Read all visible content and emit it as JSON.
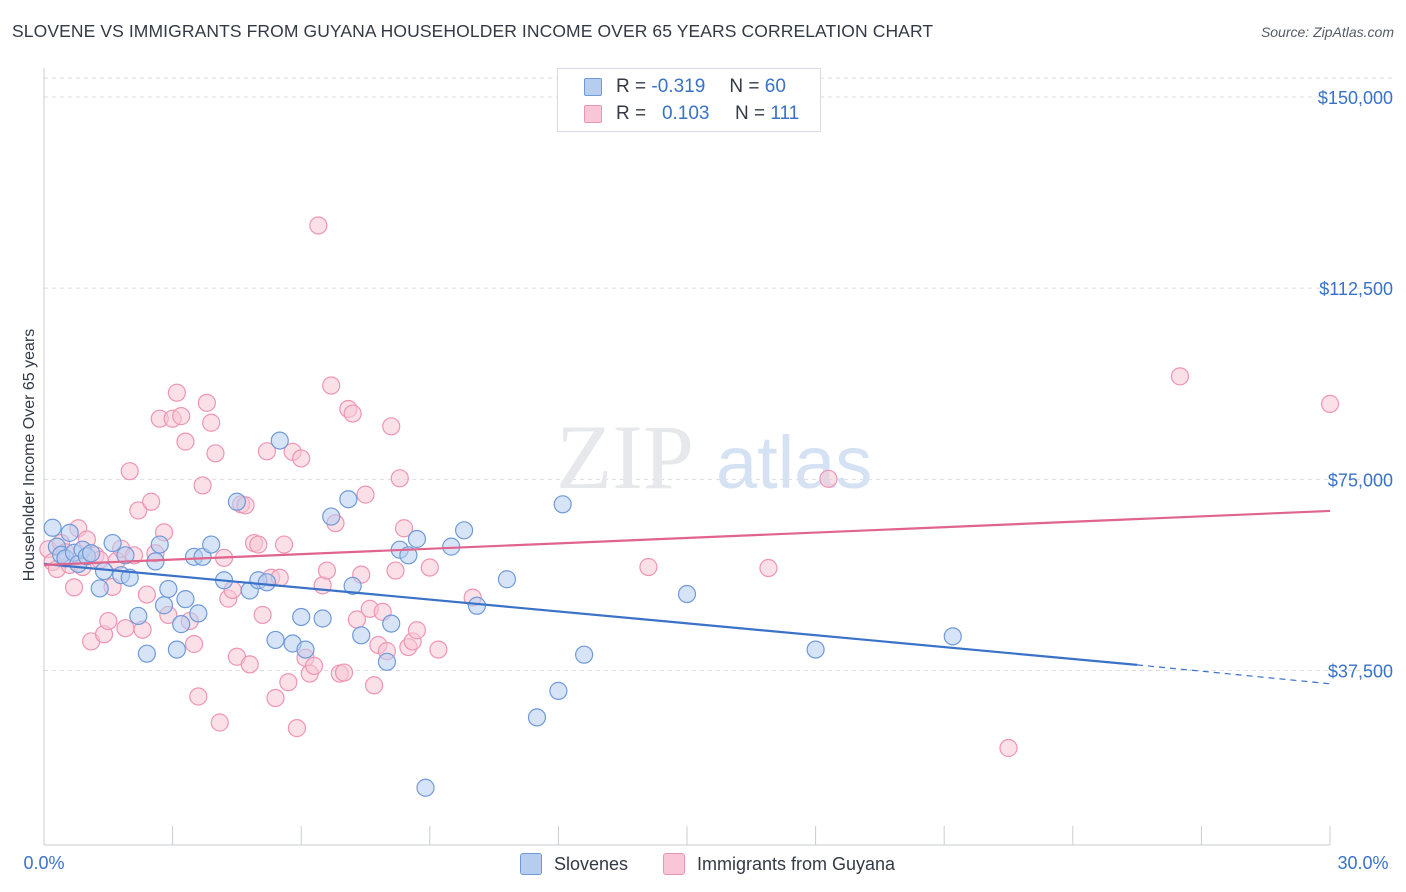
{
  "title": "SLOVENE VS IMMIGRANTS FROM GUYANA HOUSEHOLDER INCOME OVER 65 YEARS CORRELATION CHART",
  "source": "Source: ZipAtlas.com",
  "watermark": {
    "zip": "ZIP",
    "atlas": "atlas"
  },
  "colors": {
    "blue": "#3a72c8",
    "blue_fill": "#b6cdf0",
    "blue_stroke": "#6f9ad8",
    "pink": "#e0648c",
    "pink_fill": "#f8c6d6",
    "pink_stroke": "#ee95b4",
    "grid": "#d9dde3",
    "tick_label": "#3a72c8"
  },
  "legend": {
    "rows": [
      {
        "r_label": "R =",
        "r_value": "-0.319",
        "n_label": "N =",
        "n_value": "60"
      },
      {
        "r_label": "R =",
        "r_value": "0.103",
        "n_label": "N =",
        "n_value": "111"
      }
    ]
  },
  "bottom_legend": {
    "series1": "Slovenes",
    "series2": "Immigrants from Guyana"
  },
  "chart_data": {
    "type": "scatter",
    "title": "SLOVENE VS IMMIGRANTS FROM GUYANA HOUSEHOLDER INCOME OVER 65 YEARS CORRELATION CHART",
    "xlabel": "",
    "ylabel": "Householder Income Over 65 years",
    "xlim": [
      0,
      30
    ],
    "ylim": [
      0,
      150000
    ],
    "x_tick_labels": [
      "0.0%",
      "30.0%"
    ],
    "y_ticks": [
      37500,
      75000,
      112500,
      150000
    ],
    "y_tick_labels": [
      "$37,500",
      "$75,000",
      "$112,500",
      "$150,000"
    ],
    "grid": "horizontal dashed",
    "legend_position": "top-center",
    "series": [
      {
        "name": "Slovenes",
        "color": "#3a72c8",
        "trend": {
          "x0": 0,
          "y0": 58400,
          "x1": 25.5,
          "y1": 38600,
          "dashed_to_x": 30,
          "dashed_to_y": 34900
        },
        "points": [
          [
            0.2,
            65500
          ],
          [
            0.3,
            61800
          ],
          [
            0.4,
            60200
          ],
          [
            0.5,
            59500
          ],
          [
            0.6,
            64500
          ],
          [
            0.7,
            60600
          ],
          [
            0.8,
            58400
          ],
          [
            0.9,
            61200
          ],
          [
            1.0,
            59900
          ],
          [
            1.1,
            60500
          ],
          [
            1.3,
            53600
          ],
          [
            1.4,
            57000
          ],
          [
            1.6,
            62500
          ],
          [
            1.8,
            56200
          ],
          [
            1.9,
            60100
          ],
          [
            2.0,
            55700
          ],
          [
            2.2,
            48200
          ],
          [
            2.4,
            40800
          ],
          [
            2.6,
            58900
          ],
          [
            2.7,
            62200
          ],
          [
            2.8,
            50300
          ],
          [
            2.9,
            53500
          ],
          [
            3.1,
            41600
          ],
          [
            3.2,
            46600
          ],
          [
            3.3,
            51500
          ],
          [
            3.5,
            59800
          ],
          [
            3.6,
            48700
          ],
          [
            3.7,
            59800
          ],
          [
            3.9,
            62200
          ],
          [
            4.2,
            55200
          ],
          [
            4.5,
            70600
          ],
          [
            4.8,
            53200
          ],
          [
            5.0,
            55200
          ],
          [
            5.2,
            54800
          ],
          [
            5.4,
            43500
          ],
          [
            5.5,
            82600
          ],
          [
            5.8,
            42800
          ],
          [
            6.0,
            48000
          ],
          [
            6.1,
            41600
          ],
          [
            6.5,
            47700
          ],
          [
            6.7,
            67700
          ],
          [
            7.1,
            71100
          ],
          [
            7.2,
            54100
          ],
          [
            7.4,
            44400
          ],
          [
            8.0,
            39200
          ],
          [
            8.1,
            46700
          ],
          [
            8.3,
            61200
          ],
          [
            8.5,
            60100
          ],
          [
            8.7,
            63300
          ],
          [
            8.9,
            14500
          ],
          [
            9.5,
            61800
          ],
          [
            9.8,
            65000
          ],
          [
            10.1,
            50200
          ],
          [
            10.8,
            55400
          ],
          [
            11.5,
            28300
          ],
          [
            12.0,
            33500
          ],
          [
            12.1,
            70100
          ],
          [
            12.6,
            40600
          ],
          [
            15.0,
            52500
          ],
          [
            18.0,
            41600
          ],
          [
            21.2,
            44200
          ]
        ]
      },
      {
        "name": "Immigrants from Guyana",
        "color": "#e0648c",
        "trend": {
          "x0": 0,
          "y0": 58200,
          "x1": 30,
          "y1": 68800
        },
        "points": [
          [
            0.1,
            61300
          ],
          [
            0.2,
            58800
          ],
          [
            0.3,
            57400
          ],
          [
            0.4,
            62500
          ],
          [
            0.5,
            60700
          ],
          [
            0.6,
            58200
          ],
          [
            0.7,
            53800
          ],
          [
            0.8,
            65400
          ],
          [
            0.9,
            57800
          ],
          [
            1.0,
            63200
          ],
          [
            1.1,
            43200
          ],
          [
            1.2,
            60100
          ],
          [
            1.3,
            59200
          ],
          [
            1.4,
            44600
          ],
          [
            1.5,
            47200
          ],
          [
            1.6,
            53900
          ],
          [
            1.7,
            59000
          ],
          [
            1.8,
            61400
          ],
          [
            1.9,
            45800
          ],
          [
            2.0,
            76600
          ],
          [
            2.1,
            60100
          ],
          [
            2.2,
            68900
          ],
          [
            2.3,
            45500
          ],
          [
            2.4,
            52400
          ],
          [
            2.5,
            70600
          ],
          [
            2.6,
            60500
          ],
          [
            2.7,
            86900
          ],
          [
            2.8,
            64600
          ],
          [
            2.9,
            48400
          ],
          [
            3.0,
            86900
          ],
          [
            3.1,
            92000
          ],
          [
            3.2,
            87400
          ],
          [
            3.3,
            82400
          ],
          [
            3.4,
            47200
          ],
          [
            3.5,
            42700
          ],
          [
            3.6,
            32400
          ],
          [
            3.7,
            73800
          ],
          [
            3.8,
            90000
          ],
          [
            3.9,
            86100
          ],
          [
            4.0,
            80100
          ],
          [
            4.1,
            27300
          ],
          [
            4.2,
            59600
          ],
          [
            4.3,
            51600
          ],
          [
            4.4,
            53300
          ],
          [
            4.5,
            40200
          ],
          [
            4.6,
            70100
          ],
          [
            4.7,
            69900
          ],
          [
            4.8,
            38700
          ],
          [
            4.9,
            62500
          ],
          [
            5.0,
            62200
          ],
          [
            5.1,
            48400
          ],
          [
            5.2,
            80500
          ],
          [
            5.3,
            55700
          ],
          [
            5.4,
            32100
          ],
          [
            5.5,
            55700
          ],
          [
            5.6,
            62200
          ],
          [
            5.7,
            35200
          ],
          [
            5.8,
            80400
          ],
          [
            5.9,
            26200
          ],
          [
            6.0,
            79100
          ],
          [
            6.1,
            40000
          ],
          [
            6.2,
            36900
          ],
          [
            6.3,
            38400
          ],
          [
            6.4,
            124800
          ],
          [
            6.5,
            54200
          ],
          [
            6.6,
            57100
          ],
          [
            6.7,
            93400
          ],
          [
            6.8,
            66400
          ],
          [
            6.9,
            36900
          ],
          [
            7.0,
            37100
          ],
          [
            7.1,
            88800
          ],
          [
            7.2,
            87900
          ],
          [
            7.3,
            47500
          ],
          [
            7.4,
            56300
          ],
          [
            7.5,
            72000
          ],
          [
            7.6,
            49600
          ],
          [
            7.7,
            34600
          ],
          [
            7.8,
            42500
          ],
          [
            7.9,
            49000
          ],
          [
            8.0,
            41300
          ],
          [
            8.1,
            85400
          ],
          [
            8.2,
            57100
          ],
          [
            8.3,
            75200
          ],
          [
            8.4,
            65400
          ],
          [
            8.5,
            42100
          ],
          [
            8.6,
            43200
          ],
          [
            8.7,
            45400
          ],
          [
            9.0,
            57700
          ],
          [
            9.2,
            41600
          ],
          [
            10.0,
            51800
          ],
          [
            14.1,
            57800
          ],
          [
            16.9,
            57600
          ],
          [
            18.3,
            75100
          ],
          [
            22.5,
            22300
          ],
          [
            26.5,
            95200
          ],
          [
            30.0,
            89800
          ]
        ]
      }
    ]
  }
}
